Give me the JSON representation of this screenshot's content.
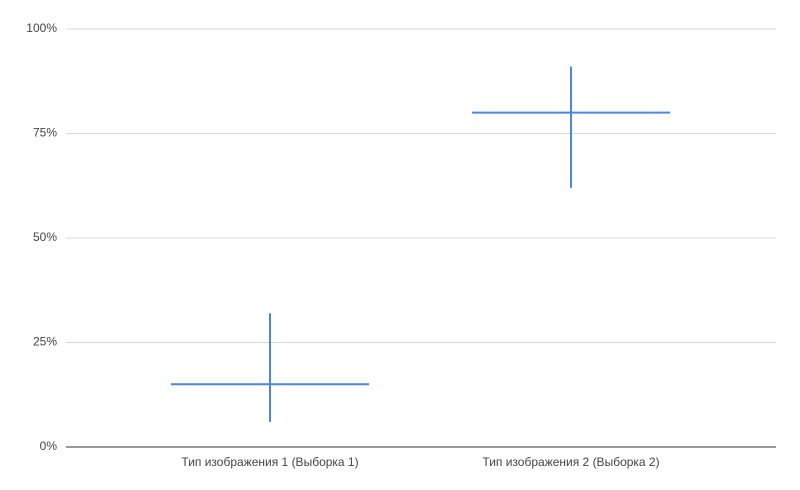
{
  "chart_data": {
    "type": "range",
    "categories": [
      "Тип изображения 1 (Выборка 1)",
      "Тип изображения 2 (Выборка 2)"
    ],
    "values": [
      15,
      80
    ],
    "lows": [
      6,
      62
    ],
    "highs": [
      32,
      91
    ],
    "color": "#4a86e8",
    "ylim": [
      0,
      100
    ],
    "yticks": [
      {
        "value": 0,
        "label": "0%"
      },
      {
        "value": 25,
        "label": "25%"
      },
      {
        "value": 50,
        "label": "50%"
      },
      {
        "value": 75,
        "label": "75%"
      },
      {
        "value": 100,
        "label": "100%"
      }
    ],
    "grid": true
  }
}
